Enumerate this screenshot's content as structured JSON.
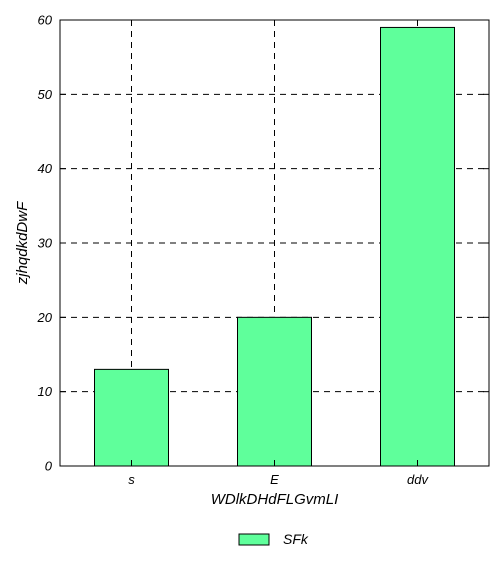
{
  "chart_data": {
    "type": "bar",
    "title": "",
    "xlabel": "WDlkDHdFLGvmLI",
    "ylabel": "zjhqdkdDwF",
    "categories": [
      "s",
      "E",
      "ddv"
    ],
    "series": [
      {
        "name": "SFk",
        "values": [
          13,
          20,
          59
        ],
        "color": "#5fff9b"
      }
    ],
    "ylim": [
      0,
      60
    ],
    "yticks": [
      0,
      10,
      20,
      30,
      40,
      50,
      60
    ],
    "grid": true,
    "grid_style": "dashed",
    "legend_position": "bottom-center"
  }
}
